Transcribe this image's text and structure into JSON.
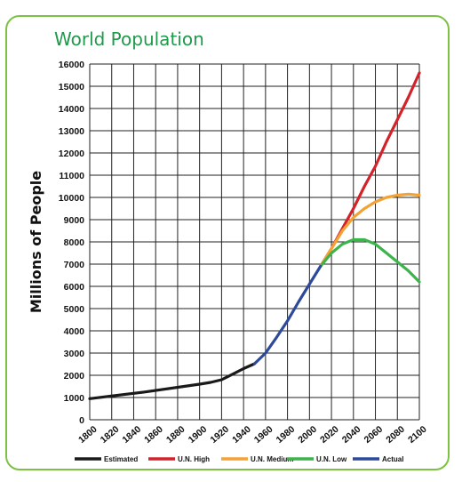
{
  "chart_data": {
    "type": "line",
    "title": "World Population",
    "xlabel": "",
    "ylabel": "Millions of People",
    "xlim": [
      1800,
      2100
    ],
    "ylim": [
      0,
      16000
    ],
    "x_ticks": [
      1800,
      1820,
      1840,
      1860,
      1880,
      1900,
      1920,
      1940,
      1960,
      1980,
      2000,
      2020,
      2040,
      2060,
      2080,
      2100
    ],
    "y_ticks": [
      0,
      1000,
      2000,
      3000,
      4000,
      5000,
      6000,
      7000,
      8000,
      9000,
      10000,
      11000,
      12000,
      13000,
      14000,
      15000,
      16000
    ],
    "grid": true,
    "legend_position": "bottom",
    "series": [
      {
        "name": "Estimated",
        "color": "#1a1a1a",
        "points": [
          [
            1800,
            950
          ],
          [
            1850,
            1250
          ],
          [
            1900,
            1600
          ],
          [
            1910,
            1680
          ],
          [
            1920,
            1800
          ],
          [
            1930,
            2050
          ],
          [
            1940,
            2300
          ],
          [
            1950,
            2520
          ]
        ]
      },
      {
        "name": "U.N. High",
        "color": "#d3222a",
        "points": [
          [
            2010,
            6900
          ],
          [
            2020,
            7700
          ],
          [
            2030,
            8600
          ],
          [
            2040,
            9500
          ],
          [
            2050,
            10500
          ],
          [
            2060,
            11400
          ],
          [
            2070,
            12500
          ],
          [
            2080,
            13500
          ],
          [
            2090,
            14500
          ],
          [
            2100,
            15600
          ]
        ]
      },
      {
        "name": "U.N. Medium",
        "color": "#f4a234",
        "points": [
          [
            2010,
            6900
          ],
          [
            2020,
            7700
          ],
          [
            2030,
            8500
          ],
          [
            2040,
            9100
          ],
          [
            2050,
            9500
          ],
          [
            2060,
            9800
          ],
          [
            2070,
            10000
          ],
          [
            2080,
            10100
          ],
          [
            2090,
            10150
          ],
          [
            2100,
            10100
          ]
        ]
      },
      {
        "name": "U.N. Low",
        "color": "#3cb44b",
        "points": [
          [
            2010,
            6900
          ],
          [
            2020,
            7500
          ],
          [
            2030,
            7900
          ],
          [
            2040,
            8100
          ],
          [
            2050,
            8100
          ],
          [
            2060,
            7900
          ],
          [
            2070,
            7500
          ],
          [
            2080,
            7100
          ],
          [
            2090,
            6700
          ],
          [
            2100,
            6200
          ]
        ]
      },
      {
        "name": "Actual",
        "color": "#2d4a9a",
        "points": [
          [
            1950,
            2520
          ],
          [
            1960,
            3000
          ],
          [
            1970,
            3700
          ],
          [
            1980,
            4450
          ],
          [
            1990,
            5300
          ],
          [
            2000,
            6100
          ],
          [
            2010,
            6900
          ]
        ]
      }
    ]
  }
}
